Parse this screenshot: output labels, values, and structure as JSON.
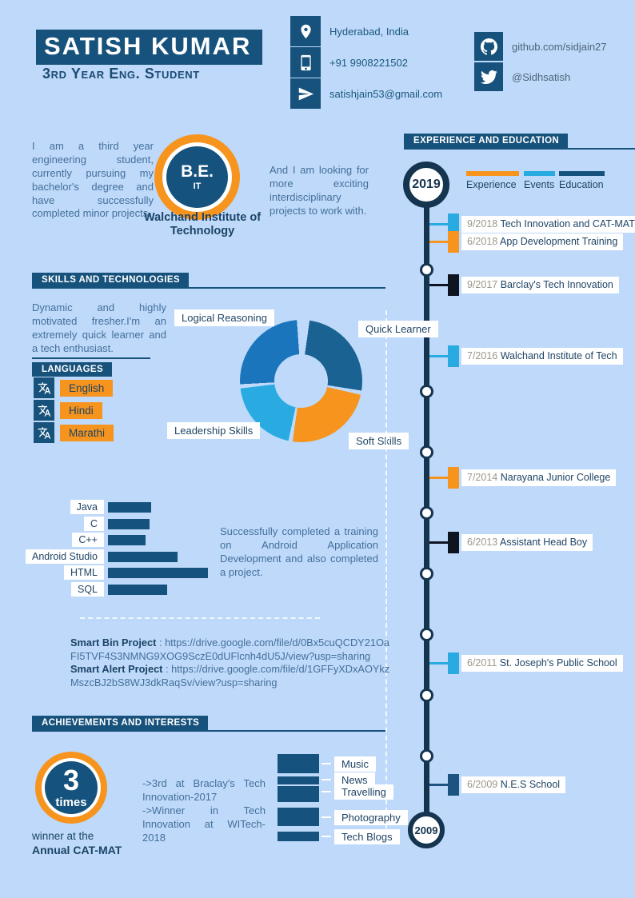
{
  "page": {
    "background": "#BED9F9"
  },
  "colors": {
    "navy": "#17527C",
    "navy_dark": "#15344F",
    "orange": "#F7941E",
    "cyan": "#29ABE2",
    "medium_blue": "#1B75BC",
    "donut_dark": "#1A6292",
    "near_black": "#0E1420",
    "bar_navy": "#15537E",
    "date_gray": "#9C9788"
  },
  "header": {
    "name": "SATISH KUMAR",
    "subtitle": "3rd Year Eng. Student",
    "contact": [
      {
        "icon": "location-pin-icon",
        "text": "Hyderabad, India"
      },
      {
        "icon": "mobile-phone-icon",
        "text": "+91 9908221502"
      },
      {
        "icon": "paper-plane-icon",
        "text": "satishjain53@gmail.com"
      }
    ],
    "social": [
      {
        "icon": "github-icon",
        "text": "github.com/sidjain27"
      },
      {
        "icon": "twitter-icon",
        "text": "@Sidhsatish"
      }
    ]
  },
  "about": {
    "left_text": "I am a third year engineering student, currently pursuing my bachelor's degree and have successfully completed minor projects.",
    "degree": "B.E.",
    "degree_branch": "IT",
    "institute": "Walchand Institute of Technology",
    "right_text": "And I am looking for more exciting interdisciplinary projects to work with."
  },
  "timeline": {
    "title": "EXPERIENCE AND EDUCATION",
    "start_year": "2019",
    "end_year": "2009",
    "legend": [
      {
        "label": "Experience",
        "color": "#F7941E"
      },
      {
        "label": "Events",
        "color": "#29ABE2"
      },
      {
        "label": "Education",
        "color": "#15537E"
      }
    ],
    "entries": [
      {
        "date": "9/2018",
        "title": "Tech Innovation and CAT-MAT",
        "color": "#29ABE2"
      },
      {
        "date": "6/2018",
        "title": "App Development Training",
        "color": "#F7941E"
      },
      {
        "date": "9/2017",
        "title": "Barclay's Tech Innovation",
        "color": "#0E1420"
      },
      {
        "date": "7/2016",
        "title": "Walchand Institute of Tech",
        "color": "#29ABE2"
      },
      {
        "date": "7/2014",
        "title": "Narayana Junior College",
        "color": "#F7941E"
      },
      {
        "date": "6/2013",
        "title": "Assistant Head Boy",
        "color": "#0E1420"
      },
      {
        "date": "6/2011",
        "title": "St. Joseph's Public School",
        "color": "#29ABE2"
      },
      {
        "date": "6/2009",
        "title": "N.E.S School",
        "color": "#1C5380"
      }
    ]
  },
  "skills": {
    "title": "SKILLS AND TECHNOLOGIES",
    "text": "Dynamic and highly motivated fresher.I'm an extremely quick learner and a tech enthusiast.",
    "languages": {
      "title": "LANGUAGES",
      "items": [
        {
          "icon": "translate-icon",
          "label": "English"
        },
        {
          "icon": "translate-icon",
          "label": "Hindi"
        },
        {
          "icon": "translate-icon",
          "label": "Marathi"
        }
      ]
    },
    "note": "Successfully completed a training on Android Application Development and also completed a project.",
    "projects": [
      {
        "name": "Smart Bin Project",
        "sep": " : ",
        "url": "https://drive.google.com/file/d/0Bx5cuQCDY21OaFI5TVF4S3NMNG9XOG9SczE0dUFlcnh4dU5J/view?usp=sharing"
      },
      {
        "name": "Smart Alert Project",
        "sep": " : ",
        "url": "https://drive.google.com/file/d/1GFFyXDxAOYkzMszcBJ2bS8WJ3dkRaqSv/view?usp=sharing"
      }
    ]
  },
  "achievements": {
    "title": "ACHIEVEMENTS AND INTERESTS",
    "badge_number": "3",
    "badge_unit": "times",
    "caption_line1": "winner at the",
    "caption_line2": "Annual CAT-MAT",
    "notes": [
      "->3rd at Braclay's Tech Innovation-2017",
      "->Winner in Tech Innovation at WITech-2018"
    ]
  },
  "chart_data": [
    {
      "type": "pie",
      "title": "Soft skills donut",
      "labels": [
        "Quick Learner",
        "Soft Skills",
        "Leadership Skills",
        "Logical Reasoning"
      ],
      "values": [
        25,
        24,
        20,
        25
      ],
      "legend_position": "around-chart",
      "segments": [
        {
          "label": "Quick Learner",
          "color": "#1A6292",
          "start_deg": 8,
          "end_deg": 99
        },
        {
          "label": "Soft Skills",
          "color": "#F7941E",
          "start_deg": 103,
          "end_deg": 188
        },
        {
          "label": "Leadership Skills",
          "color": "#29ABE2",
          "start_deg": 192,
          "end_deg": 263
        },
        {
          "label": "Logical Reasoning",
          "color": "#1B75BC",
          "start_deg": 267,
          "end_deg": 356
        }
      ]
    },
    {
      "type": "bar",
      "title": "Technology proficiency",
      "orientation": "horizontal",
      "categories": [
        "Java",
        "C",
        "C++",
        "Android Studio",
        "HTML",
        "SQL"
      ],
      "values": [
        54,
        52,
        47,
        87,
        125,
        74
      ],
      "value_note": "relative bar lengths in pixels, no numeric axis shown",
      "color": "#15537E",
      "grid": false
    },
    {
      "type": "bar",
      "title": "Interests",
      "orientation": "vertical-stacked",
      "categories": [
        "Music",
        "News",
        "Travelling",
        "Photography",
        "Tech Blogs"
      ],
      "values": [
        24,
        10,
        20,
        23,
        12
      ],
      "value_note": "relative block heights in pixels, no numeric axis shown",
      "color": "#15537E",
      "grid": false
    }
  ]
}
